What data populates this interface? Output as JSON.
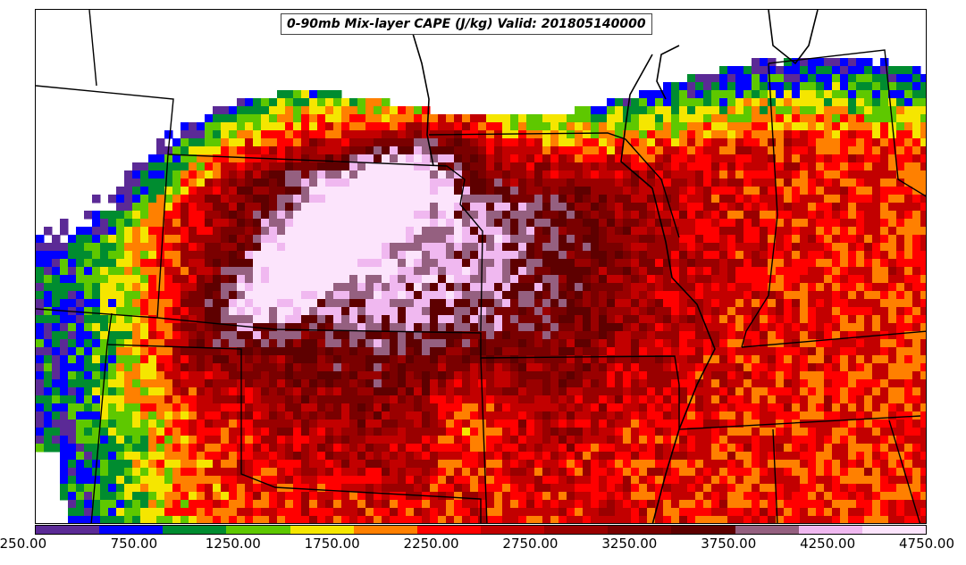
{
  "map": {
    "title": "0-90mb Mix-layer CAPE (J/kg) Valid: 201805140000",
    "field": "CAPE",
    "units": "J/kg",
    "valid_time": "201805140000"
  },
  "colorbar": {
    "colors": [
      "#5b2a96",
      "#0000ff",
      "#008c30",
      "#5ec800",
      "#f5e600",
      "#ff8000",
      "#ff0000",
      "#c20000",
      "#9a0000",
      "#7a0000",
      "#5e0000",
      "#956080",
      "#f0b8f0",
      "#fce4fc"
    ],
    "tick_labels": [
      "250.00",
      "750.00",
      "1250.00",
      "1750.00",
      "2250.00",
      "2750.00",
      "3250.00",
      "3750.00",
      "4250.00",
      "4750.00"
    ]
  },
  "features": {
    "state_boundaries": "black-line",
    "coastline_lakes": "black-line"
  }
}
